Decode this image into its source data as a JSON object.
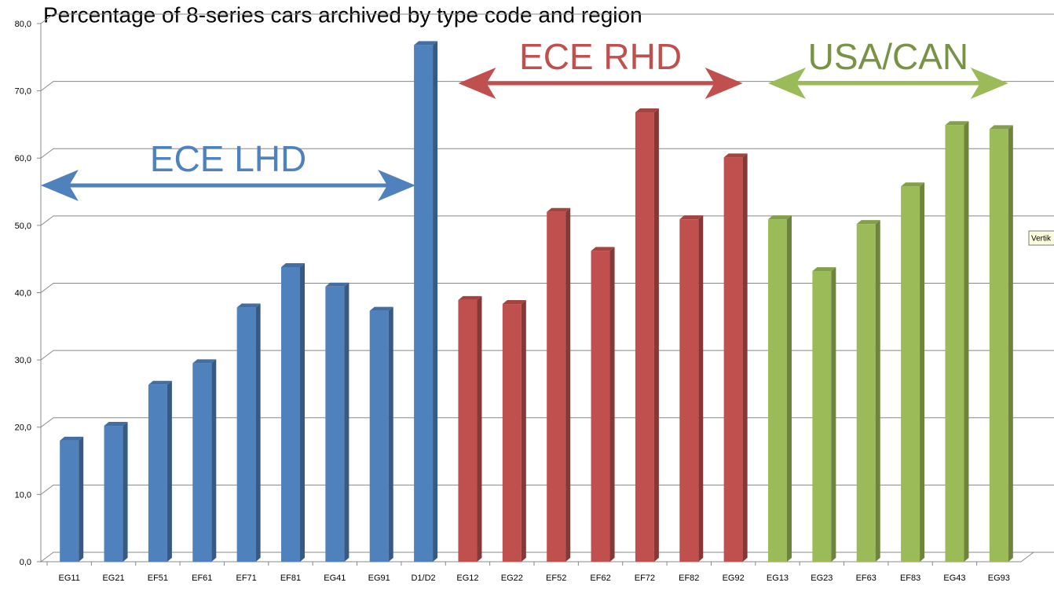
{
  "chart_data": {
    "type": "bar3d",
    "title": "Percentage of 8-series cars archived by type code and region",
    "categories": [
      "EG11",
      "EG21",
      "EF51",
      "EF61",
      "EF71",
      "EF81",
      "EG41",
      "EG91",
      "D1/D2",
      "EG12",
      "EG22",
      "EF52",
      "EF62",
      "EF72",
      "EF82",
      "EG92",
      "EG13",
      "EG23",
      "EF63",
      "EF83",
      "EG43",
      "EG93"
    ],
    "series": [
      {
        "name": "ECE LHD",
        "color": "#4f81bd",
        "values": [
          18.0,
          20.2,
          26.3,
          29.5,
          37.8,
          43.8,
          40.9,
          37.3,
          76.8,
          null,
          null,
          null,
          null,
          null,
          null,
          null,
          null,
          null,
          null,
          null,
          null,
          null
        ]
      },
      {
        "name": "ECE RHD",
        "color": "#c0504d",
        "values": [
          null,
          null,
          null,
          null,
          null,
          null,
          null,
          null,
          null,
          38.9,
          38.3,
          52.0,
          46.2,
          66.8,
          50.9,
          60.1,
          null,
          null,
          null,
          null,
          null,
          null
        ]
      },
      {
        "name": "USA/CAN",
        "color": "#9bbb59",
        "values": [
          null,
          null,
          null,
          null,
          null,
          null,
          null,
          null,
          null,
          null,
          null,
          null,
          null,
          null,
          null,
          null,
          50.9,
          43.2,
          50.2,
          55.8,
          64.9,
          64.3
        ]
      }
    ],
    "ylim": [
      0,
      80
    ],
    "yticks": [
      {
        "value": 0,
        "label": "0,0"
      },
      {
        "value": 10,
        "label": "10,0"
      },
      {
        "value": 20,
        "label": "20,0"
      },
      {
        "value": 30,
        "label": "30,0"
      },
      {
        "value": 40,
        "label": "40,0"
      },
      {
        "value": 50,
        "label": "50,0"
      },
      {
        "value": 60,
        "label": "60,0"
      },
      {
        "value": 70,
        "label": "70,0"
      },
      {
        "value": 80,
        "label": "80,0"
      }
    ],
    "grid": true,
    "tooltip": "Vertik"
  }
}
